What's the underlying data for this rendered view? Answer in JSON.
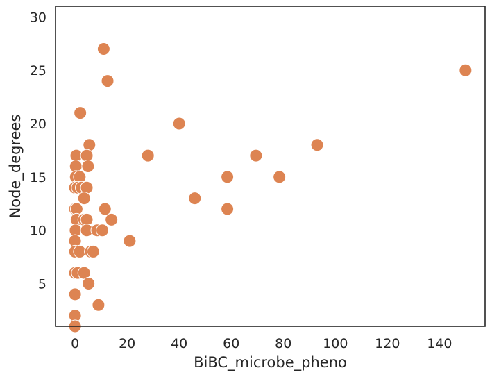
{
  "chart_data": {
    "type": "scatter",
    "title": "",
    "xlabel": "BiBC_microbe_pheno",
    "ylabel": "Node_degrees",
    "xlim": [
      -7.5,
      157.5
    ],
    "ylim": [
      1,
      31
    ],
    "xticks": [
      0,
      20,
      40,
      60,
      80,
      100,
      120,
      140
    ],
    "yticks": [
      5,
      10,
      15,
      20,
      25,
      30
    ],
    "grid": false,
    "marker_color": "#dd8452",
    "marker_edge_color": "#ffffff",
    "points": [
      {
        "x": 11,
        "y": 27
      },
      {
        "x": 150,
        "y": 25
      },
      {
        "x": 12.5,
        "y": 24
      },
      {
        "x": 2,
        "y": 21
      },
      {
        "x": 40,
        "y": 20
      },
      {
        "x": 5.5,
        "y": 18
      },
      {
        "x": 93,
        "y": 18
      },
      {
        "x": 0.5,
        "y": 17
      },
      {
        "x": 4.5,
        "y": 17
      },
      {
        "x": 28,
        "y": 17
      },
      {
        "x": 69.5,
        "y": 17
      },
      {
        "x": 0.3,
        "y": 16
      },
      {
        "x": 5,
        "y": 16
      },
      {
        "x": 0.3,
        "y": 15
      },
      {
        "x": 1.8,
        "y": 15
      },
      {
        "x": 58.5,
        "y": 15
      },
      {
        "x": 78.5,
        "y": 15
      },
      {
        "x": 0,
        "y": 14
      },
      {
        "x": 1,
        "y": 14
      },
      {
        "x": 2.5,
        "y": 14
      },
      {
        "x": 4.5,
        "y": 14
      },
      {
        "x": 3.5,
        "y": 13
      },
      {
        "x": 46,
        "y": 13
      },
      {
        "x": 0,
        "y": 12
      },
      {
        "x": 0.6,
        "y": 12
      },
      {
        "x": 11.5,
        "y": 12
      },
      {
        "x": 58.5,
        "y": 12
      },
      {
        "x": 0.6,
        "y": 11
      },
      {
        "x": 3.5,
        "y": 11
      },
      {
        "x": 4.5,
        "y": 11
      },
      {
        "x": 14,
        "y": 11
      },
      {
        "x": 0.2,
        "y": 10
      },
      {
        "x": 4.5,
        "y": 10
      },
      {
        "x": 8.5,
        "y": 10
      },
      {
        "x": 10.5,
        "y": 10
      },
      {
        "x": 0,
        "y": 9
      },
      {
        "x": 21,
        "y": 9
      },
      {
        "x": 0,
        "y": 8
      },
      {
        "x": 1.8,
        "y": 8
      },
      {
        "x": 6,
        "y": 8
      },
      {
        "x": 7,
        "y": 8
      },
      {
        "x": 0,
        "y": 6
      },
      {
        "x": 1,
        "y": 6
      },
      {
        "x": 3.5,
        "y": 6
      },
      {
        "x": 5.2,
        "y": 5
      },
      {
        "x": 0,
        "y": 4
      },
      {
        "x": 9,
        "y": 3
      },
      {
        "x": 0,
        "y": 2
      },
      {
        "x": 0,
        "y": 1
      }
    ]
  }
}
